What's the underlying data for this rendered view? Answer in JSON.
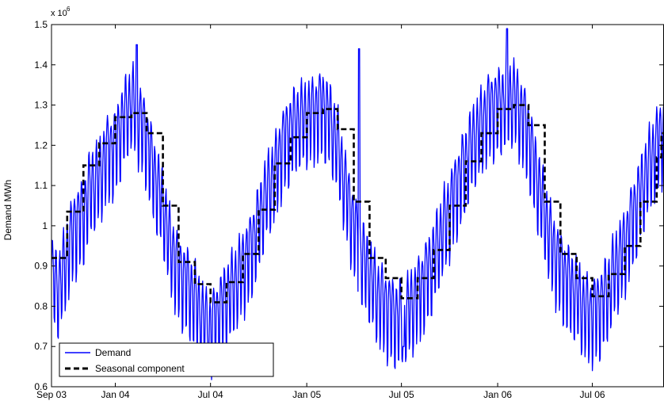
{
  "chart_data": {
    "type": "line",
    "ylabel": "Demand MWh",
    "y_exponent_label": "x 10",
    "y_exponent_power": "6",
    "ylim": [
      0.6,
      1.5
    ],
    "y_ticks": [
      0.6,
      0.7,
      0.8,
      0.9,
      1,
      1.1,
      1.2,
      1.3,
      1.4,
      1.5
    ],
    "y_tick_labels": [
      "0.6",
      "0.7",
      "0.8",
      "0.9",
      "1",
      "1.1",
      "1.2",
      "1.3",
      "1.4",
      "1.5"
    ],
    "xlim": [
      "2003-09-01",
      "2006-11-15"
    ],
    "x_ticks": [
      {
        "date": "2003-09-01",
        "label": "Sep 03"
      },
      {
        "date": "2004-01-01",
        "label": "Jan 04"
      },
      {
        "date": "2004-07-01",
        "label": "Jul 04"
      },
      {
        "date": "2005-01-01",
        "label": "Jan 05"
      },
      {
        "date": "2005-07-01",
        "label": "Jul 05"
      },
      {
        "date": "2006-01-01",
        "label": "Jan 06"
      },
      {
        "date": "2006-07-01",
        "label": "Jul 06"
      }
    ],
    "legend_position": "bottom-left",
    "grid": false,
    "series": [
      {
        "name": "Demand",
        "color": "#0000ff",
        "style": "solid",
        "x": [
          "2003-09-01",
          "2003-09-15",
          "2003-10-01",
          "2003-10-15",
          "2003-11-01",
          "2003-11-15",
          "2003-12-01",
          "2003-12-15",
          "2004-01-01",
          "2004-01-15",
          "2004-02-01",
          "2004-02-15",
          "2004-03-01",
          "2004-03-15",
          "2004-04-01",
          "2004-04-15",
          "2004-05-01",
          "2004-05-15",
          "2004-06-01",
          "2004-06-15",
          "2004-07-01",
          "2004-07-15",
          "2004-08-01",
          "2004-08-15",
          "2004-09-01",
          "2004-09-15",
          "2004-10-01",
          "2004-10-15",
          "2004-11-01",
          "2004-11-15",
          "2004-12-01",
          "2004-12-15",
          "2005-01-01",
          "2005-01-15",
          "2005-02-01",
          "2005-02-15",
          "2005-03-01",
          "2005-03-15",
          "2005-04-01",
          "2005-04-15",
          "2005-05-01",
          "2005-05-15",
          "2005-06-01",
          "2005-06-15",
          "2005-07-01",
          "2005-07-15",
          "2005-08-01",
          "2005-08-15",
          "2005-09-01",
          "2005-09-15",
          "2005-10-01",
          "2005-10-15",
          "2005-11-01",
          "2005-11-15",
          "2005-12-01",
          "2005-12-15",
          "2006-01-01",
          "2006-01-15",
          "2006-02-01",
          "2006-02-15",
          "2006-03-01",
          "2006-03-15",
          "2006-04-01",
          "2006-04-15",
          "2006-05-01",
          "2006-05-15",
          "2006-06-01",
          "2006-06-15",
          "2006-07-01",
          "2006-07-15",
          "2006-08-01",
          "2006-08-15",
          "2006-09-01",
          "2006-09-15",
          "2006-10-01",
          "2006-10-15",
          "2006-11-01",
          "2006-11-15"
        ],
        "values": [
          0.9,
          0.86,
          0.95,
          1.02,
          1.05,
          1.12,
          1.14,
          1.2,
          1.22,
          1.28,
          1.33,
          1.29,
          1.24,
          1.15,
          1.07,
          0.97,
          0.91,
          0.88,
          0.84,
          0.79,
          0.76,
          0.8,
          0.84,
          0.87,
          0.92,
          0.96,
          1.03,
          1.1,
          1.15,
          1.22,
          1.26,
          1.28,
          1.29,
          1.3,
          1.32,
          1.28,
          1.22,
          1.12,
          1.02,
          0.95,
          0.9,
          0.85,
          0.82,
          0.8,
          0.79,
          0.81,
          0.85,
          0.89,
          0.94,
          1.0,
          1.06,
          1.12,
          1.18,
          1.23,
          1.27,
          1.31,
          1.32,
          1.33,
          1.34,
          1.3,
          1.25,
          1.15,
          1.05,
          0.97,
          0.92,
          0.88,
          0.85,
          0.81,
          0.8,
          0.82,
          0.86,
          0.92,
          0.97,
          1.04,
          1.1,
          1.16,
          1.22,
          1.26
        ],
        "daily_amplitude": 0.07,
        "peaks": [
          {
            "date": "2004-02-11",
            "value": 1.45
          },
          {
            "date": "2005-04-11",
            "value": 1.44
          },
          {
            "date": "2006-01-19",
            "value": 1.49
          },
          {
            "date": "2004-06-27",
            "value": 0.69
          },
          {
            "date": "2005-07-05",
            "value": 0.7
          }
        ]
      },
      {
        "name": "Seasonal component",
        "color": "#000000",
        "style": "dashed",
        "steps": [
          {
            "start": "2003-09-01",
            "value": 0.92
          },
          {
            "start": "2003-10-01",
            "value": 1.035
          },
          {
            "start": "2003-11-01",
            "value": 1.15
          },
          {
            "start": "2003-12-01",
            "value": 1.205
          },
          {
            "start": "2004-01-01",
            "value": 1.27
          },
          {
            "start": "2004-02-01",
            "value": 1.28
          },
          {
            "start": "2004-03-01",
            "value": 1.23
          },
          {
            "start": "2004-04-01",
            "value": 1.05
          },
          {
            "start": "2004-05-01",
            "value": 0.91
          },
          {
            "start": "2004-06-01",
            "value": 0.855
          },
          {
            "start": "2004-07-01",
            "value": 0.81
          },
          {
            "start": "2004-08-01",
            "value": 0.86
          },
          {
            "start": "2004-09-01",
            "value": 0.93
          },
          {
            "start": "2004-10-01",
            "value": 1.04
          },
          {
            "start": "2004-11-01",
            "value": 1.155
          },
          {
            "start": "2004-12-01",
            "value": 1.22
          },
          {
            "start": "2005-01-01",
            "value": 1.28
          },
          {
            "start": "2005-02-01",
            "value": 1.29
          },
          {
            "start": "2005-03-01",
            "value": 1.24
          },
          {
            "start": "2005-04-01",
            "value": 1.06
          },
          {
            "start": "2005-05-01",
            "value": 0.92
          },
          {
            "start": "2005-06-01",
            "value": 0.87
          },
          {
            "start": "2005-07-01",
            "value": 0.82
          },
          {
            "start": "2005-08-01",
            "value": 0.87
          },
          {
            "start": "2005-09-01",
            "value": 0.94
          },
          {
            "start": "2005-10-01",
            "value": 1.05
          },
          {
            "start": "2005-11-01",
            "value": 1.16
          },
          {
            "start": "2005-12-01",
            "value": 1.23
          },
          {
            "start": "2006-01-01",
            "value": 1.29
          },
          {
            "start": "2006-02-01",
            "value": 1.3
          },
          {
            "start": "2006-03-01",
            "value": 1.25
          },
          {
            "start": "2006-04-01",
            "value": 1.06
          },
          {
            "start": "2006-05-01",
            "value": 0.93
          },
          {
            "start": "2006-06-01",
            "value": 0.87
          },
          {
            "start": "2006-07-01",
            "value": 0.825
          },
          {
            "start": "2006-08-01",
            "value": 0.88
          },
          {
            "start": "2006-09-01",
            "value": 0.95
          },
          {
            "start": "2006-10-01",
            "value": 1.06
          },
          {
            "start": "2006-11-01",
            "value": 1.17
          },
          {
            "start": "2006-11-10",
            "value": 1.23
          }
        ],
        "end": "2006-11-15"
      }
    ],
    "legend": [
      "Demand",
      "Seasonal component"
    ]
  }
}
